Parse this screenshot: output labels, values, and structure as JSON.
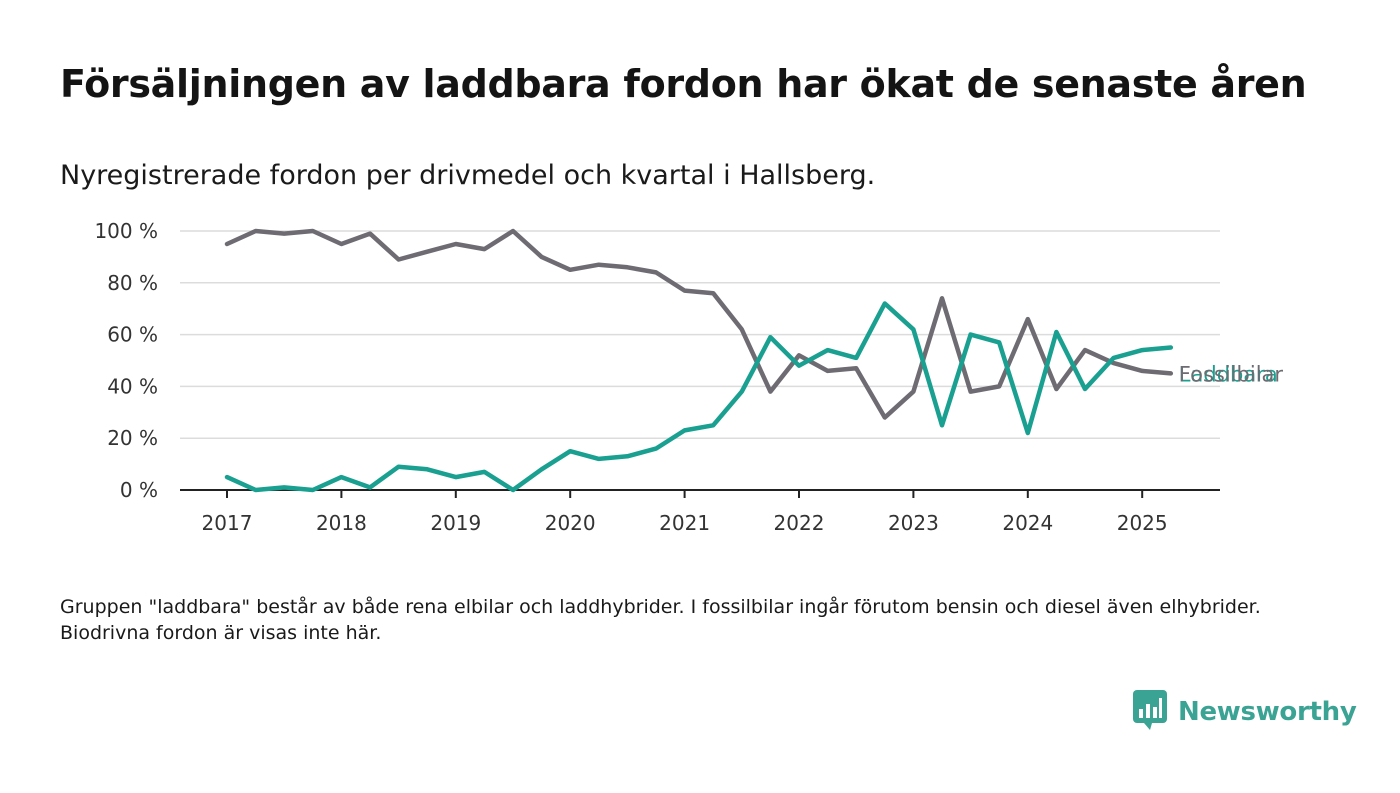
{
  "title": "Försäljningen av laddbara fordon har ökat de senaste åren",
  "subtitle": "Nyregistrerade fordon per drivmedel och kvartal i Hallsberg.",
  "note": "Gruppen \"laddbara\" består av både rena elbilar och laddhybrider. I fossilbilar ingår förutom bensin och diesel även elhybrider. Biodrivna fordon är visas inte här.",
  "brand": {
    "name": "Newsworthy",
    "icon": "newsworthy-logo-icon",
    "color": "#3aa394"
  },
  "chart_data": {
    "type": "line",
    "title": "Försäljningen av laddbara fordon har ökat de senaste åren",
    "subtitle": "Nyregistrerade fordon per drivmedel och kvartal i Hallsberg.",
    "x": [
      "2017Q1",
      "2017Q2",
      "2017Q3",
      "2017Q4",
      "2018Q1",
      "2018Q2",
      "2018Q3",
      "2018Q4",
      "2019Q1",
      "2019Q2",
      "2019Q3",
      "2019Q4",
      "2020Q1",
      "2020Q2",
      "2020Q3",
      "2020Q4",
      "2021Q1",
      "2021Q2",
      "2021Q3",
      "2021Q4",
      "2022Q1",
      "2022Q2",
      "2022Q3",
      "2022Q4",
      "2023Q1",
      "2023Q2",
      "2023Q3",
      "2023Q4",
      "2024Q1",
      "2024Q2",
      "2024Q3",
      "2024Q4",
      "2025Q1",
      "2025Q2"
    ],
    "x_ticks": [
      "2017",
      "2018",
      "2019",
      "2020",
      "2021",
      "2022",
      "2023",
      "2024",
      "2025"
    ],
    "y_ticks": [
      "0 %",
      "20 %",
      "40 %",
      "60 %",
      "80 %",
      "100 %"
    ],
    "ylim": [
      0,
      100
    ],
    "y_unit": "%",
    "grid": true,
    "series": [
      {
        "name": "Fossilbilar",
        "color": "#6e6b72",
        "values": [
          95,
          100,
          99,
          100,
          95,
          99,
          89,
          92,
          95,
          93,
          100,
          90,
          85,
          87,
          86,
          84,
          77,
          76,
          62,
          38,
          52,
          46,
          47,
          28,
          38,
          74,
          38,
          40,
          66,
          39,
          54,
          49,
          46,
          45
        ]
      },
      {
        "name": "Laddbara",
        "color": "#1aa090",
        "values": [
          5,
          0,
          1,
          0,
          5,
          1,
          9,
          8,
          5,
          7,
          0,
          8,
          15,
          12,
          13,
          16,
          23,
          25,
          38,
          59,
          48,
          54,
          51,
          72,
          62,
          25,
          60,
          57,
          22,
          61,
          39,
          51,
          54,
          55
        ]
      }
    ]
  }
}
